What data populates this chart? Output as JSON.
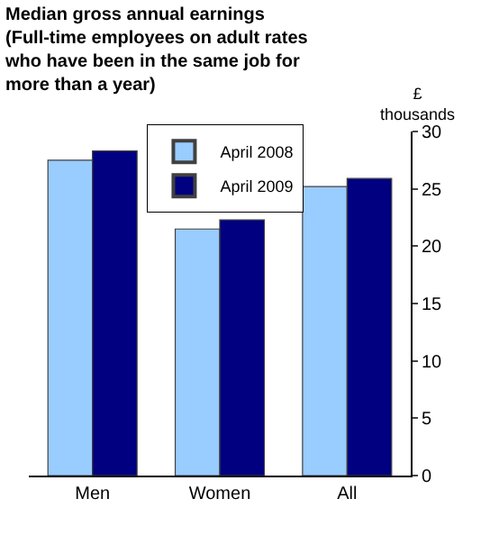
{
  "chart_data": {
    "type": "bar",
    "title": "Median gross annual earnings\n(Full-time employees on adult rates\nwho have been in the same job for\nmore than a year)",
    "ylabel": "£\nthousands",
    "categories": [
      "Men",
      "Women",
      "All"
    ],
    "series": [
      {
        "name": "April 2008",
        "color": "#99ccff",
        "values": [
          27.5,
          21.5,
          25.2
        ]
      },
      {
        "name": "April 2009",
        "color": "#000080",
        "values": [
          28.3,
          22.3,
          25.9
        ]
      }
    ],
    "ylim": [
      0,
      30
    ],
    "yticks": [
      0,
      5,
      10,
      15,
      20,
      25,
      30
    ],
    "legend": "top left"
  }
}
